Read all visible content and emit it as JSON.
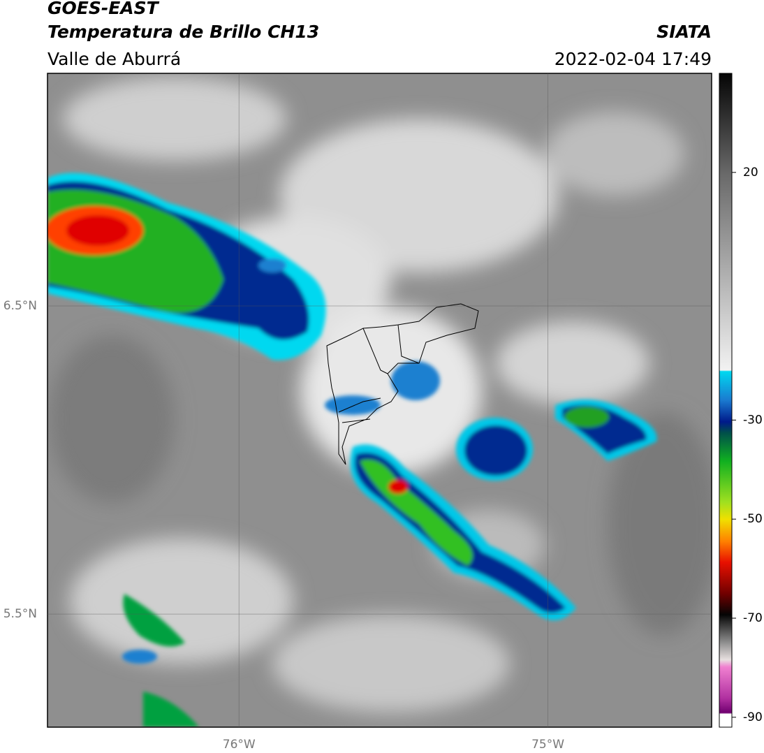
{
  "header": {
    "title": "GOES-EAST",
    "subtitle": "Temperatura de Brillo CH13",
    "region": "Valle de Aburrá",
    "agency": "SIATA",
    "datetime": "2022-02-04 17:49"
  },
  "map": {
    "xlim": [
      -76.62,
      -74.47
    ],
    "ylim": [
      5.133,
      7.255
    ],
    "grid": true,
    "xticks": [
      {
        "value": -76,
        "label": "76°W"
      },
      {
        "value": -75,
        "label": "75°W"
      }
    ],
    "yticks": [
      {
        "value": 6.5,
        "label": "6.5°N"
      },
      {
        "value": 5.5,
        "label": "5.5°N"
      }
    ]
  },
  "colorbar": {
    "lim": [
      -92,
      40
    ],
    "ticks": [
      20,
      -30,
      -50,
      -70,
      -90
    ]
  }
}
